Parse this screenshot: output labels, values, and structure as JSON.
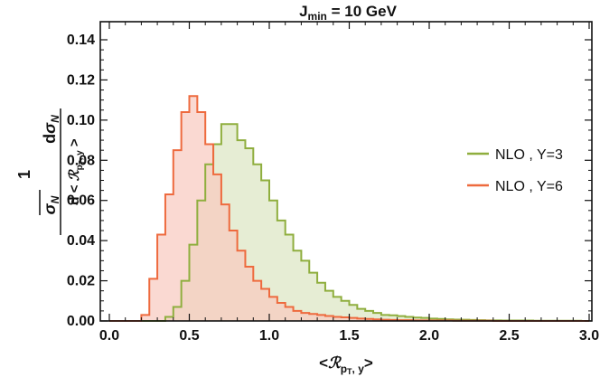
{
  "chart_data": {
    "type": "histogram",
    "title": {
      "main": "J",
      "sub": "min",
      "rest": " = 10 GeV"
    },
    "xlabel": "<ℛ p_T, y>",
    "ylabel": "(1/σ_N) dσ_N / d<ℛ p_T, y>",
    "xlim": [
      0.0,
      3.0
    ],
    "ylim": [
      0.0,
      0.15
    ],
    "xticks": [
      "0.0",
      "0.5",
      "1.0",
      "1.5",
      "2.0",
      "2.5",
      "3.0"
    ],
    "yticks": [
      "0.00",
      "0.02",
      "0.04",
      "0.06",
      "0.08",
      "0.10",
      "0.12",
      "0.14"
    ],
    "bin_edges": [
      0.0,
      0.05,
      0.1,
      0.15,
      0.2,
      0.25,
      0.3,
      0.35,
      0.4,
      0.45,
      0.5,
      0.55,
      0.6,
      0.65,
      0.7,
      0.75,
      0.8,
      0.85,
      0.9,
      0.95,
      1.0,
      1.05,
      1.1,
      1.15,
      1.2,
      1.25,
      1.3,
      1.35,
      1.4,
      1.45,
      1.5,
      1.55,
      1.6,
      1.65,
      1.7,
      1.75,
      1.8,
      1.85,
      1.9,
      1.95,
      2.0,
      2.05,
      2.1,
      2.15,
      2.2,
      2.25,
      2.3,
      2.35,
      2.4,
      2.45,
      2.5,
      2.55,
      2.6,
      2.65,
      2.7,
      2.75,
      2.8,
      2.85,
      2.9,
      2.95,
      3.0
    ],
    "grid": false,
    "legend_position": "right",
    "series": [
      {
        "name": "NLO , Y=3",
        "color": "#8fae3e",
        "fill": "#dbe6c2",
        "values": [
          0,
          0,
          0,
          0,
          0,
          0,
          0,
          0.002,
          0.007,
          0.02,
          0.038,
          0.06,
          0.078,
          0.088,
          0.098,
          0.098,
          0.09,
          0.086,
          0.078,
          0.07,
          0.06,
          0.05,
          0.043,
          0.035,
          0.03,
          0.024,
          0.019,
          0.015,
          0.012,
          0.01,
          0.008,
          0.006,
          0.005,
          0.004,
          0.003,
          0.0028,
          0.0024,
          0.002,
          0.0017,
          0.0015,
          0.0012,
          0.001,
          0.0008,
          0.0007,
          0.0006,
          0.0005,
          0.0004,
          0.0003,
          0.0003,
          0.0002,
          0.0002,
          0.0002,
          0.0002,
          0.0001,
          0.0001,
          0.0001,
          0.0001,
          0.0001,
          0.0001,
          0
        ]
      },
      {
        "name": "NLO , Y=6",
        "color": "#ee6a3e",
        "fill": "#f8c9bf",
        "values": [
          0,
          0,
          0,
          0,
          0.003,
          0.021,
          0.043,
          0.063,
          0.085,
          0.104,
          0.112,
          0.104,
          0.088,
          0.073,
          0.058,
          0.045,
          0.035,
          0.027,
          0.02,
          0.016,
          0.012,
          0.009,
          0.007,
          0.005,
          0.004,
          0.0035,
          0.003,
          0.0025,
          0.002,
          0.0018,
          0.0015,
          0.0012,
          0.001,
          0.0008,
          0.0006,
          0.0005,
          0.0004,
          0.0004,
          0.0003,
          0.0003,
          0.0002,
          0.0002,
          0.0002,
          0.0001,
          0.0001,
          0.0001,
          0.0001,
          0.0001,
          0,
          0,
          0,
          0,
          0,
          0,
          0,
          0,
          0,
          0,
          0,
          0
        ]
      }
    ]
  }
}
